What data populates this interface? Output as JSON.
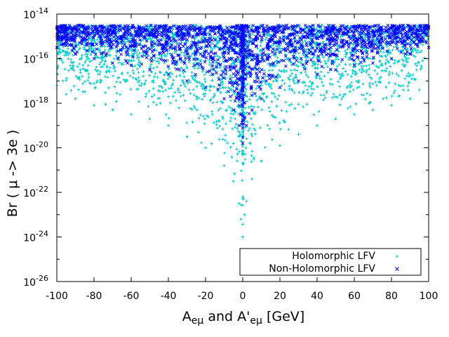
{
  "chart_data": {
    "type": "scatter",
    "title": "",
    "xlabel": {
      "base": "A",
      "sub": "eμ",
      "mid": " and A'",
      "sub2": "eμ",
      "end": " [GeV]"
    },
    "ylabel": "Br ( μ -> 3e )",
    "xlim": [
      -100,
      100
    ],
    "ylim_exp": [
      -26,
      -14
    ],
    "yscale": "log",
    "grid": false,
    "legend_position": "bottom-right",
    "x_ticks": [
      "-100",
      "-80",
      "-60",
      "-40",
      "-20",
      "0",
      "20",
      "40",
      "60",
      "80",
      "100"
    ],
    "y_tick_exponents": [
      "-26",
      "-24",
      "-22",
      "-20",
      "-18",
      "-16",
      "-14"
    ],
    "series": [
      {
        "name": "Holomorphic LFV",
        "marker": "plus",
        "color": "#00cccc",
        "ceiling_log10": -14.5,
        "points_log10": [
          [
            -100,
            -17.2
          ],
          [
            -100,
            -15.0
          ],
          [
            -95,
            -17.6
          ],
          [
            -90,
            -17.8
          ],
          [
            -80,
            -18.1
          ],
          [
            -70,
            -18.3
          ],
          [
            -60,
            -18.5
          ],
          [
            -50,
            -18.7
          ],
          [
            -40,
            -19.0
          ],
          [
            -30,
            -19.5
          ],
          [
            -20,
            -20.0
          ],
          [
            -10,
            -20.8
          ],
          [
            -5,
            -21.5
          ],
          [
            -2,
            -22.5
          ],
          [
            -1,
            -23.2
          ],
          [
            0,
            -24.0
          ],
          [
            1,
            -23.0
          ],
          [
            2,
            -22.4
          ],
          [
            5,
            -21.4
          ],
          [
            10,
            -20.6
          ],
          [
            20,
            -19.9
          ],
          [
            30,
            -19.4
          ],
          [
            40,
            -19.0
          ],
          [
            50,
            -18.7
          ],
          [
            60,
            -18.5
          ],
          [
            70,
            -18.3
          ],
          [
            80,
            -18.1
          ],
          [
            90,
            -17.8
          ],
          [
            95,
            -17.4
          ],
          [
            100,
            -15.0
          ]
        ]
      },
      {
        "name": "Non-Holomorphic LFV",
        "marker": "x",
        "color": "#0000ff",
        "ceiling_log10": -14.5,
        "points_log10": [
          [
            -100,
            -15.5
          ],
          [
            -100,
            -14.6
          ],
          [
            -90,
            -15.8
          ],
          [
            -80,
            -16.0
          ],
          [
            -70,
            -16.2
          ],
          [
            -60,
            -16.3
          ],
          [
            -50,
            -16.5
          ],
          [
            -40,
            -16.7
          ],
          [
            -30,
            -17.0
          ],
          [
            -20,
            -17.3
          ],
          [
            -10,
            -17.8
          ],
          [
            -5,
            -18.3
          ],
          [
            -2,
            -19.0
          ],
          [
            0,
            -19.8
          ],
          [
            2,
            -19.0
          ],
          [
            5,
            -18.3
          ],
          [
            10,
            -17.8
          ],
          [
            20,
            -17.3
          ],
          [
            30,
            -17.0
          ],
          [
            40,
            -16.7
          ],
          [
            50,
            -16.5
          ],
          [
            60,
            -16.3
          ],
          [
            70,
            -16.2
          ],
          [
            80,
            -16.0
          ],
          [
            90,
            -15.8
          ],
          [
            100,
            -15.5
          ],
          [
            100,
            -14.6
          ]
        ]
      }
    ]
  }
}
